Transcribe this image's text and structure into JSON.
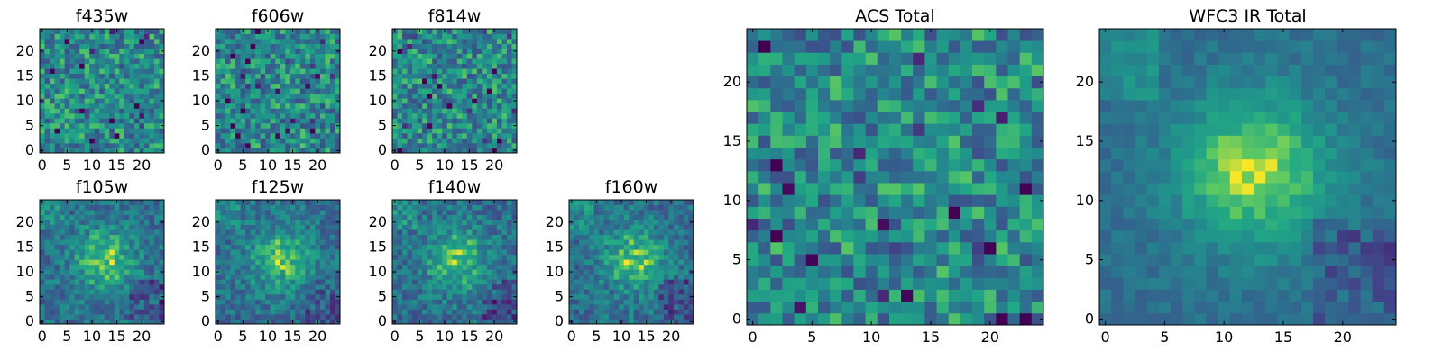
{
  "chart_data": [
    {
      "type": "heatmap",
      "title": "f435w",
      "x_ticks": [
        "0",
        "5",
        "10",
        "15",
        "20"
      ],
      "y_ticks": [
        "0",
        "5",
        "10",
        "15",
        "20"
      ],
      "xlim": [
        -0.5,
        24.5
      ],
      "ylim": [
        -0.5,
        24.5
      ],
      "grid_size": 25,
      "colormap": "viridis",
      "pattern": "noise",
      "seed": 11
    },
    {
      "type": "heatmap",
      "title": "f606w",
      "x_ticks": [
        "0",
        "5",
        "10",
        "15",
        "20"
      ],
      "y_ticks": [
        "0",
        "5",
        "10",
        "15",
        "20"
      ],
      "xlim": [
        -0.5,
        24.5
      ],
      "ylim": [
        -0.5,
        24.5
      ],
      "grid_size": 25,
      "colormap": "viridis",
      "pattern": "noise",
      "seed": 23
    },
    {
      "type": "heatmap",
      "title": "f814w",
      "x_ticks": [
        "0",
        "5",
        "10",
        "15",
        "20"
      ],
      "y_ticks": [
        "0",
        "5",
        "10",
        "15",
        "20"
      ],
      "xlim": [
        -0.5,
        24.5
      ],
      "ylim": [
        -0.5,
        24.5
      ],
      "grid_size": 25,
      "colormap": "viridis",
      "pattern": "noise",
      "seed": 37
    },
    {
      "type": "heatmap",
      "title": "f105w",
      "x_ticks": [
        "0",
        "5",
        "10",
        "15",
        "20"
      ],
      "y_ticks": [
        "0",
        "5",
        "10",
        "15",
        "20"
      ],
      "xlim": [
        -0.5,
        24.5
      ],
      "ylim": [
        -0.5,
        24.5
      ],
      "grid_size": 25,
      "colormap": "viridis",
      "pattern": "source",
      "seed": 41
    },
    {
      "type": "heatmap",
      "title": "f125w",
      "x_ticks": [
        "0",
        "5",
        "10",
        "15",
        "20"
      ],
      "y_ticks": [
        "0",
        "5",
        "10",
        "15",
        "20"
      ],
      "xlim": [
        -0.5,
        24.5
      ],
      "ylim": [
        -0.5,
        24.5
      ],
      "grid_size": 25,
      "colormap": "viridis",
      "pattern": "source",
      "seed": 53
    },
    {
      "type": "heatmap",
      "title": "f140w",
      "x_ticks": [
        "0",
        "5",
        "10",
        "15",
        "20"
      ],
      "y_ticks": [
        "0",
        "5",
        "10",
        "15",
        "20"
      ],
      "xlim": [
        -0.5,
        24.5
      ],
      "ylim": [
        -0.5,
        24.5
      ],
      "grid_size": 25,
      "colormap": "viridis",
      "pattern": "source",
      "seed": 67
    },
    {
      "type": "heatmap",
      "title": "f160w",
      "x_ticks": [
        "0",
        "5",
        "10",
        "15",
        "20"
      ],
      "y_ticks": [
        "0",
        "5",
        "10",
        "15",
        "20"
      ],
      "xlim": [
        -0.5,
        24.5
      ],
      "ylim": [
        -0.5,
        24.5
      ],
      "grid_size": 25,
      "colormap": "viridis",
      "pattern": "source",
      "seed": 71
    },
    {
      "type": "heatmap",
      "title": "ACS Total",
      "x_ticks": [
        "0",
        "5",
        "10",
        "15",
        "20"
      ],
      "y_ticks": [
        "0",
        "5",
        "10",
        "15",
        "20"
      ],
      "xlim": [
        -0.5,
        24.5
      ],
      "ylim": [
        -0.5,
        24.5
      ],
      "grid_size": 25,
      "colormap": "viridis",
      "pattern": "noise",
      "seed": 83
    },
    {
      "type": "heatmap",
      "title": "WFC3 IR Total",
      "x_ticks": [
        "0",
        "5",
        "10",
        "15",
        "20"
      ],
      "y_ticks": [
        "0",
        "5",
        "10",
        "15",
        "20"
      ],
      "xlim": [
        -0.5,
        24.5
      ],
      "ylim": [
        -0.5,
        24.5
      ],
      "grid_size": 25,
      "colormap": "viridis",
      "pattern": "source-smooth",
      "seed": 97
    }
  ]
}
